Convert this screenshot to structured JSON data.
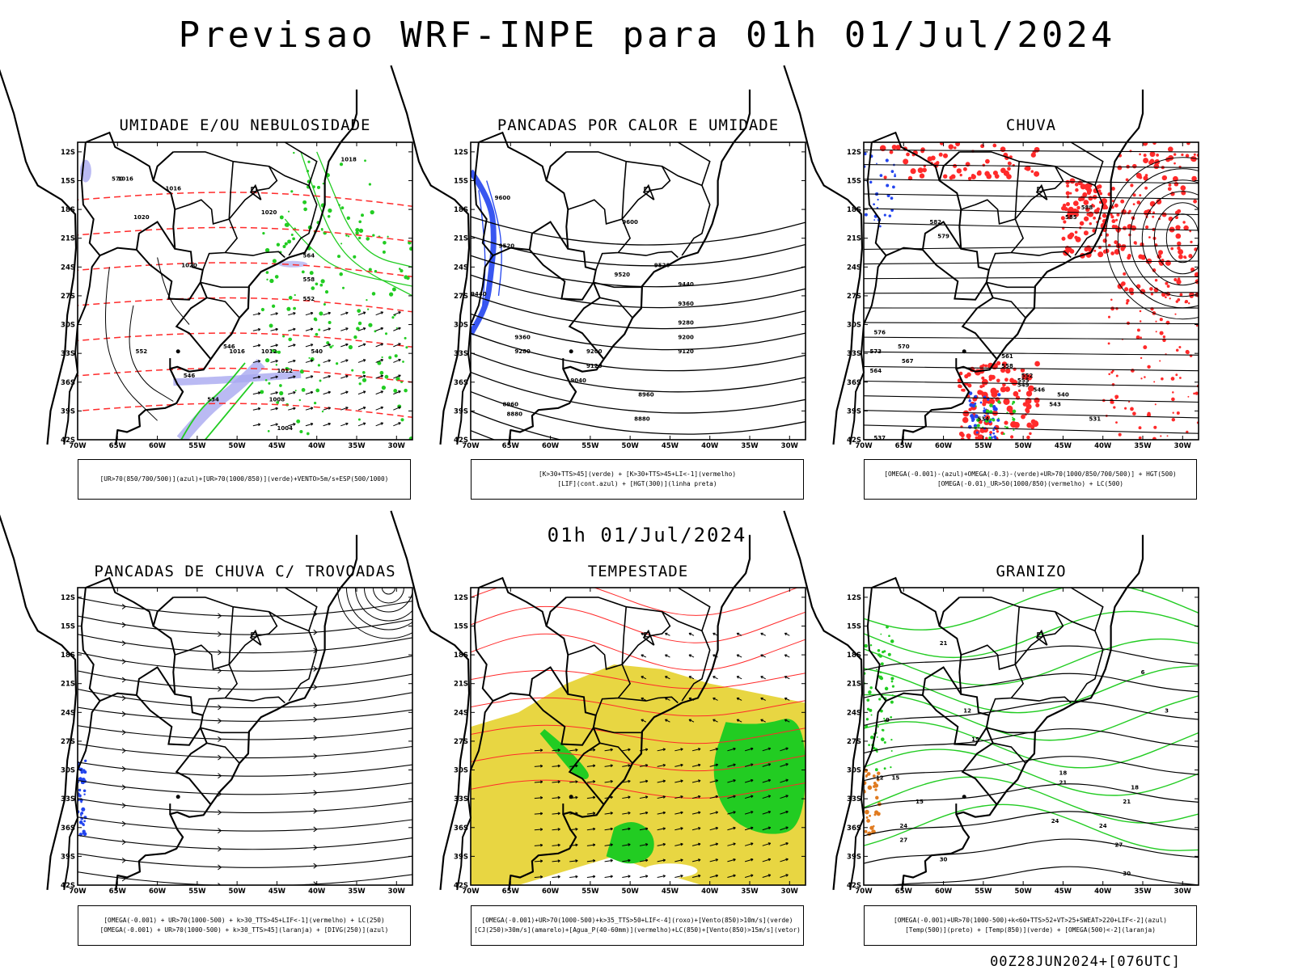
{
  "main_title": "Previsao WRF-INPE  para 01h 01/Jul/2024",
  "mid_title": "01h 01/Jul/2024",
  "footer": "00Z28JUN2024+[076UTC]",
  "axes": {
    "lat_labels": [
      "12S",
      "15S",
      "18S",
      "21S",
      "24S",
      "27S",
      "30S",
      "33S",
      "36S",
      "39S",
      "42S"
    ],
    "lon_labels": [
      "70W",
      "65W",
      "60W",
      "55W",
      "50W",
      "45W",
      "40W",
      "35W",
      "30W"
    ]
  },
  "colors": {
    "contour": "#000000",
    "red": "#ff2a2a",
    "green": "#22cc22",
    "blue": "#2244ee",
    "lavender": "#a9a9f0",
    "yellow": "#e6d22e",
    "orange": "#e07b20"
  },
  "panels": [
    {
      "id": "umidade",
      "title": "UMIDADE E/OU NEBULOSIDADE",
      "legend": [
        "[UR>70(850/700/500)](azul)+[UR>70(1000/850)](verde)+VENTO>5m/s+ESP(500/1000)"
      ],
      "labels": [
        "1016",
        "1020",
        "1016",
        "1020",
        "1018",
        "570",
        "564",
        "1020",
        "558",
        "552",
        "546",
        "546",
        "540",
        "534",
        "1008",
        "1004",
        "1012",
        "1012",
        "1016",
        "552"
      ]
    },
    {
      "id": "pancadas_calor",
      "title": "PANCADAS POR CALOR E UMIDADE",
      "legend": [
        "[K>30+TTS>45](verde) + [K>30+TTS>45+LI<-1](vermelho)",
        "[LIF](cont.azul) + [HGT(300)](linha preta)"
      ],
      "labels": [
        "9600",
        "9600",
        "9520",
        "9520",
        "9440",
        "9440",
        "9360",
        "9360",
        "9280",
        "9280",
        "9200",
        "9200",
        "9120",
        "9120",
        "9040",
        "8960",
        "8960",
        "8880",
        "8880",
        "9520"
      ]
    },
    {
      "id": "chuva",
      "title": "CHUVA",
      "legend": [
        "[OMEGA(-0.001)-(azul)+OMEGA(-0.3)-(verde)+UR>70(1000/850/700/500)] + HGT(500)",
        "[OMEGA(-0.01)_UR>50(1000/850)(vermelho) + LC(500)"
      ],
      "labels": [
        "582",
        "579",
        "576",
        "573",
        "570",
        "567",
        "564",
        "561",
        "558",
        "555",
        "552",
        "549",
        "546",
        "543",
        "540",
        "537",
        "534",
        "531",
        "588",
        "585"
      ]
    },
    {
      "id": "pancadas_trovoadas",
      "title": "PANCADAS DE CHUVA C/ TROVOADAS",
      "legend": [
        "[OMEGA(-0.001) + UR>70(1000-500) + k>30_TTS>45+LIF<-1](vermelho) + LC(250)",
        "[OMEGA(-0.001) + UR>70(1000-500) + k>30_TTS>45](laranja) + [DIVG(250)](azul)"
      ],
      "labels": []
    },
    {
      "id": "tempestade",
      "title": "TEMPESTADE",
      "legend": [
        "[OMEGA(-0.001)+UR>70(1000-500)+k>35_TTS>50+LIF<-4](roxo)+[Vento(850)>10m/s](verde)",
        "[CJ(250)>30m/s](amarelo)+[Agua_P(40-60mm)](vermelho)+LC(850)+[Vento(850)>15m/s](vetor)"
      ],
      "labels": []
    },
    {
      "id": "granizo",
      "title": "GRANIZO",
      "legend": [
        "[OMEGA(-0.001)+UR>70(1000-500)+k<60+TTS>52+VT>25+SWEAT>220+LIF<-2](azul)",
        "[Temp(500)](preto) + [Temp(850)](verde) + [OMEGA(500)<-2](laranja)"
      ],
      "labels": [
        "21",
        "6",
        "12",
        "15",
        "15",
        "18",
        "21",
        "24",
        "24",
        "27",
        "30",
        "9",
        "12",
        "15",
        "18",
        "21",
        "24",
        "27",
        "30",
        "3"
      ]
    }
  ]
}
